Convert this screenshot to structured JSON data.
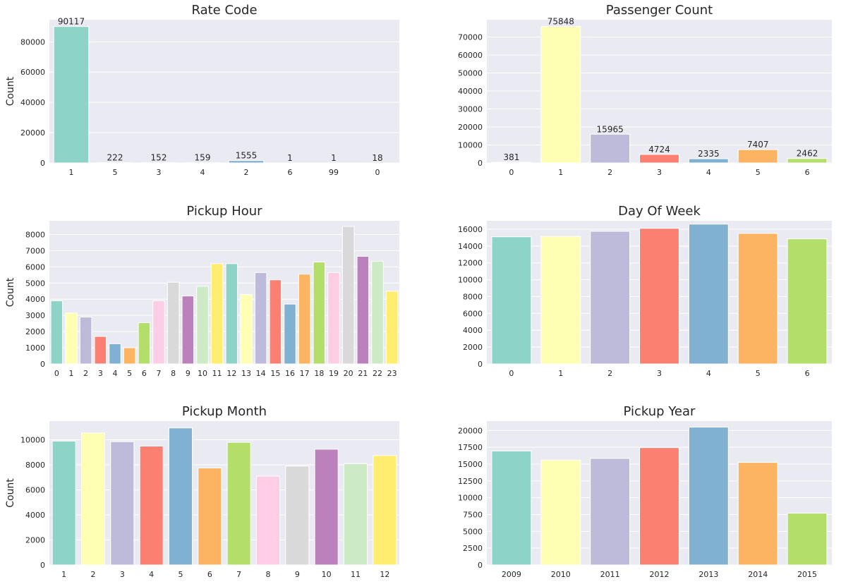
{
  "chart_data": [
    {
      "type": "bar",
      "title": "Rate Code",
      "ylabel": "Count",
      "xlabel": "",
      "categories": [
        "1",
        "5",
        "3",
        "4",
        "2",
        "6",
        "99",
        "0"
      ],
      "values": [
        90117,
        222,
        152,
        159,
        1555,
        1,
        1,
        18
      ],
      "data_labels": [
        "90117",
        "222",
        "152",
        "159",
        "1555",
        "1",
        "1",
        "18"
      ],
      "ylim": [
        0,
        94600
      ],
      "yticks": [
        0,
        20000,
        40000,
        60000,
        80000
      ]
    },
    {
      "type": "bar",
      "title": "Passenger Count",
      "ylabel": "",
      "xlabel": "",
      "categories": [
        "0",
        "1",
        "2",
        "3",
        "4",
        "5",
        "6"
      ],
      "values": [
        381,
        75848,
        15965,
        4724,
        2335,
        7407,
        2462
      ],
      "data_labels": [
        "381",
        "75848",
        "15965",
        "4724",
        "2335",
        "7407",
        "2462"
      ],
      "ylim": [
        0,
        79600
      ],
      "yticks": [
        0,
        10000,
        20000,
        30000,
        40000,
        50000,
        60000,
        70000
      ]
    },
    {
      "type": "bar",
      "title": "Pickup Hour",
      "ylabel": "Count",
      "xlabel": "",
      "categories": [
        "0",
        "1",
        "2",
        "3",
        "4",
        "5",
        "6",
        "7",
        "8",
        "9",
        "10",
        "11",
        "12",
        "13",
        "14",
        "15",
        "16",
        "17",
        "18",
        "19",
        "20",
        "21",
        "22",
        "23"
      ],
      "values": [
        3900,
        3150,
        2900,
        1700,
        1250,
        1000,
        2550,
        3900,
        5050,
        4200,
        4800,
        6200,
        6200,
        4300,
        5650,
        5200,
        3700,
        5550,
        6300,
        5650,
        8500,
        6650,
        6350,
        4500
      ],
      "data_labels": [],
      "ylim": [
        0,
        8850
      ],
      "yticks": [
        0,
        1000,
        2000,
        3000,
        4000,
        5000,
        6000,
        7000,
        8000
      ]
    },
    {
      "type": "bar",
      "title": "Day Of Week",
      "ylabel": "",
      "xlabel": "",
      "categories": [
        "0",
        "1",
        "2",
        "3",
        "4",
        "5",
        "6"
      ],
      "values": [
        15100,
        15150,
        15750,
        16100,
        16600,
        15500,
        14850
      ],
      "data_labels": [],
      "ylim": [
        0,
        17000
      ],
      "yticks": [
        0,
        2000,
        4000,
        6000,
        8000,
        10000,
        12000,
        14000,
        16000
      ]
    },
    {
      "type": "bar",
      "title": "Pickup Month",
      "ylabel": "Count",
      "xlabel": "",
      "categories": [
        "1",
        "2",
        "3",
        "4",
        "5",
        "6",
        "7",
        "8",
        "9",
        "10",
        "11",
        "12"
      ],
      "values": [
        9900,
        10550,
        9850,
        9500,
        10950,
        7750,
        9800,
        7100,
        7900,
        9250,
        8100,
        8750
      ],
      "data_labels": [],
      "ylim": [
        0,
        11500
      ],
      "yticks": [
        0,
        2000,
        4000,
        6000,
        8000,
        10000
      ]
    },
    {
      "type": "bar",
      "title": "Pickup Year",
      "ylabel": "",
      "xlabel": "",
      "categories": [
        "2009",
        "2010",
        "2011",
        "2012",
        "2013",
        "2014",
        "2015"
      ],
      "values": [
        16950,
        15600,
        15850,
        17450,
        20500,
        15250,
        7700
      ],
      "data_labels": [],
      "ylim": [
        0,
        21400
      ],
      "yticks": [
        0,
        2500,
        5000,
        7500,
        10000,
        12500,
        15000,
        17500,
        20000
      ]
    }
  ],
  "palette": [
    "#8dd3c7",
    "#ffffb3",
    "#bebada",
    "#fb8072",
    "#80b1d3",
    "#fdb462",
    "#b3de69",
    "#fccde5",
    "#d9d9d9",
    "#bc80bd",
    "#ccebc5",
    "#ffed6f"
  ],
  "style": {
    "plot_background": "#eaeaf2",
    "grid_color": "#ffffff",
    "text_color": "#262626"
  }
}
